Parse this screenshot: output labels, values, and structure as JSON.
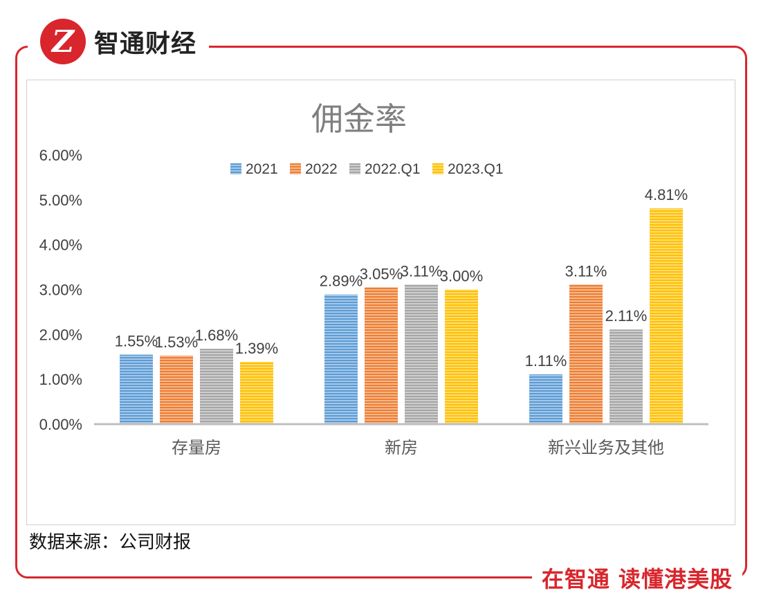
{
  "brand": {
    "logo_glyph": "Z",
    "name": "智通财经",
    "slogan": "在智通  读懂港美股",
    "accent": "#d8262c"
  },
  "source": "数据来源：公司财报",
  "chart_data": {
    "type": "bar",
    "title": "佣金率",
    "categories": [
      "存量房",
      "新房",
      "新兴业务及其他"
    ],
    "series": [
      {
        "name": "2021",
        "color": "#5b9bd5",
        "values": [
          1.55,
          2.89,
          1.11
        ],
        "labels": [
          "1.55%",
          "2.89%",
          "1.11%"
        ]
      },
      {
        "name": "2022",
        "color": "#ed7d31",
        "values": [
          1.53,
          3.05,
          3.11
        ],
        "labels": [
          "1.53%",
          "3.05%",
          "3.11%"
        ]
      },
      {
        "name": "2022.Q1",
        "color": "#a5a5a5",
        "values": [
          1.68,
          3.11,
          2.11
        ],
        "labels": [
          "1.68%",
          "3.11%",
          "2.11%"
        ]
      },
      {
        "name": "2023.Q1",
        "color": "#ffc000",
        "values": [
          1.39,
          3.0,
          4.81
        ],
        "labels": [
          "1.39%",
          "3.00%",
          "4.81%"
        ]
      }
    ],
    "yticks": [
      "0.00%",
      "1.00%",
      "2.00%",
      "3.00%",
      "4.00%",
      "5.00%",
      "6.00%"
    ],
    "ylim": [
      0,
      6
    ],
    "xlabel": "",
    "ylabel": "",
    "legend": "top",
    "grid": false
  }
}
